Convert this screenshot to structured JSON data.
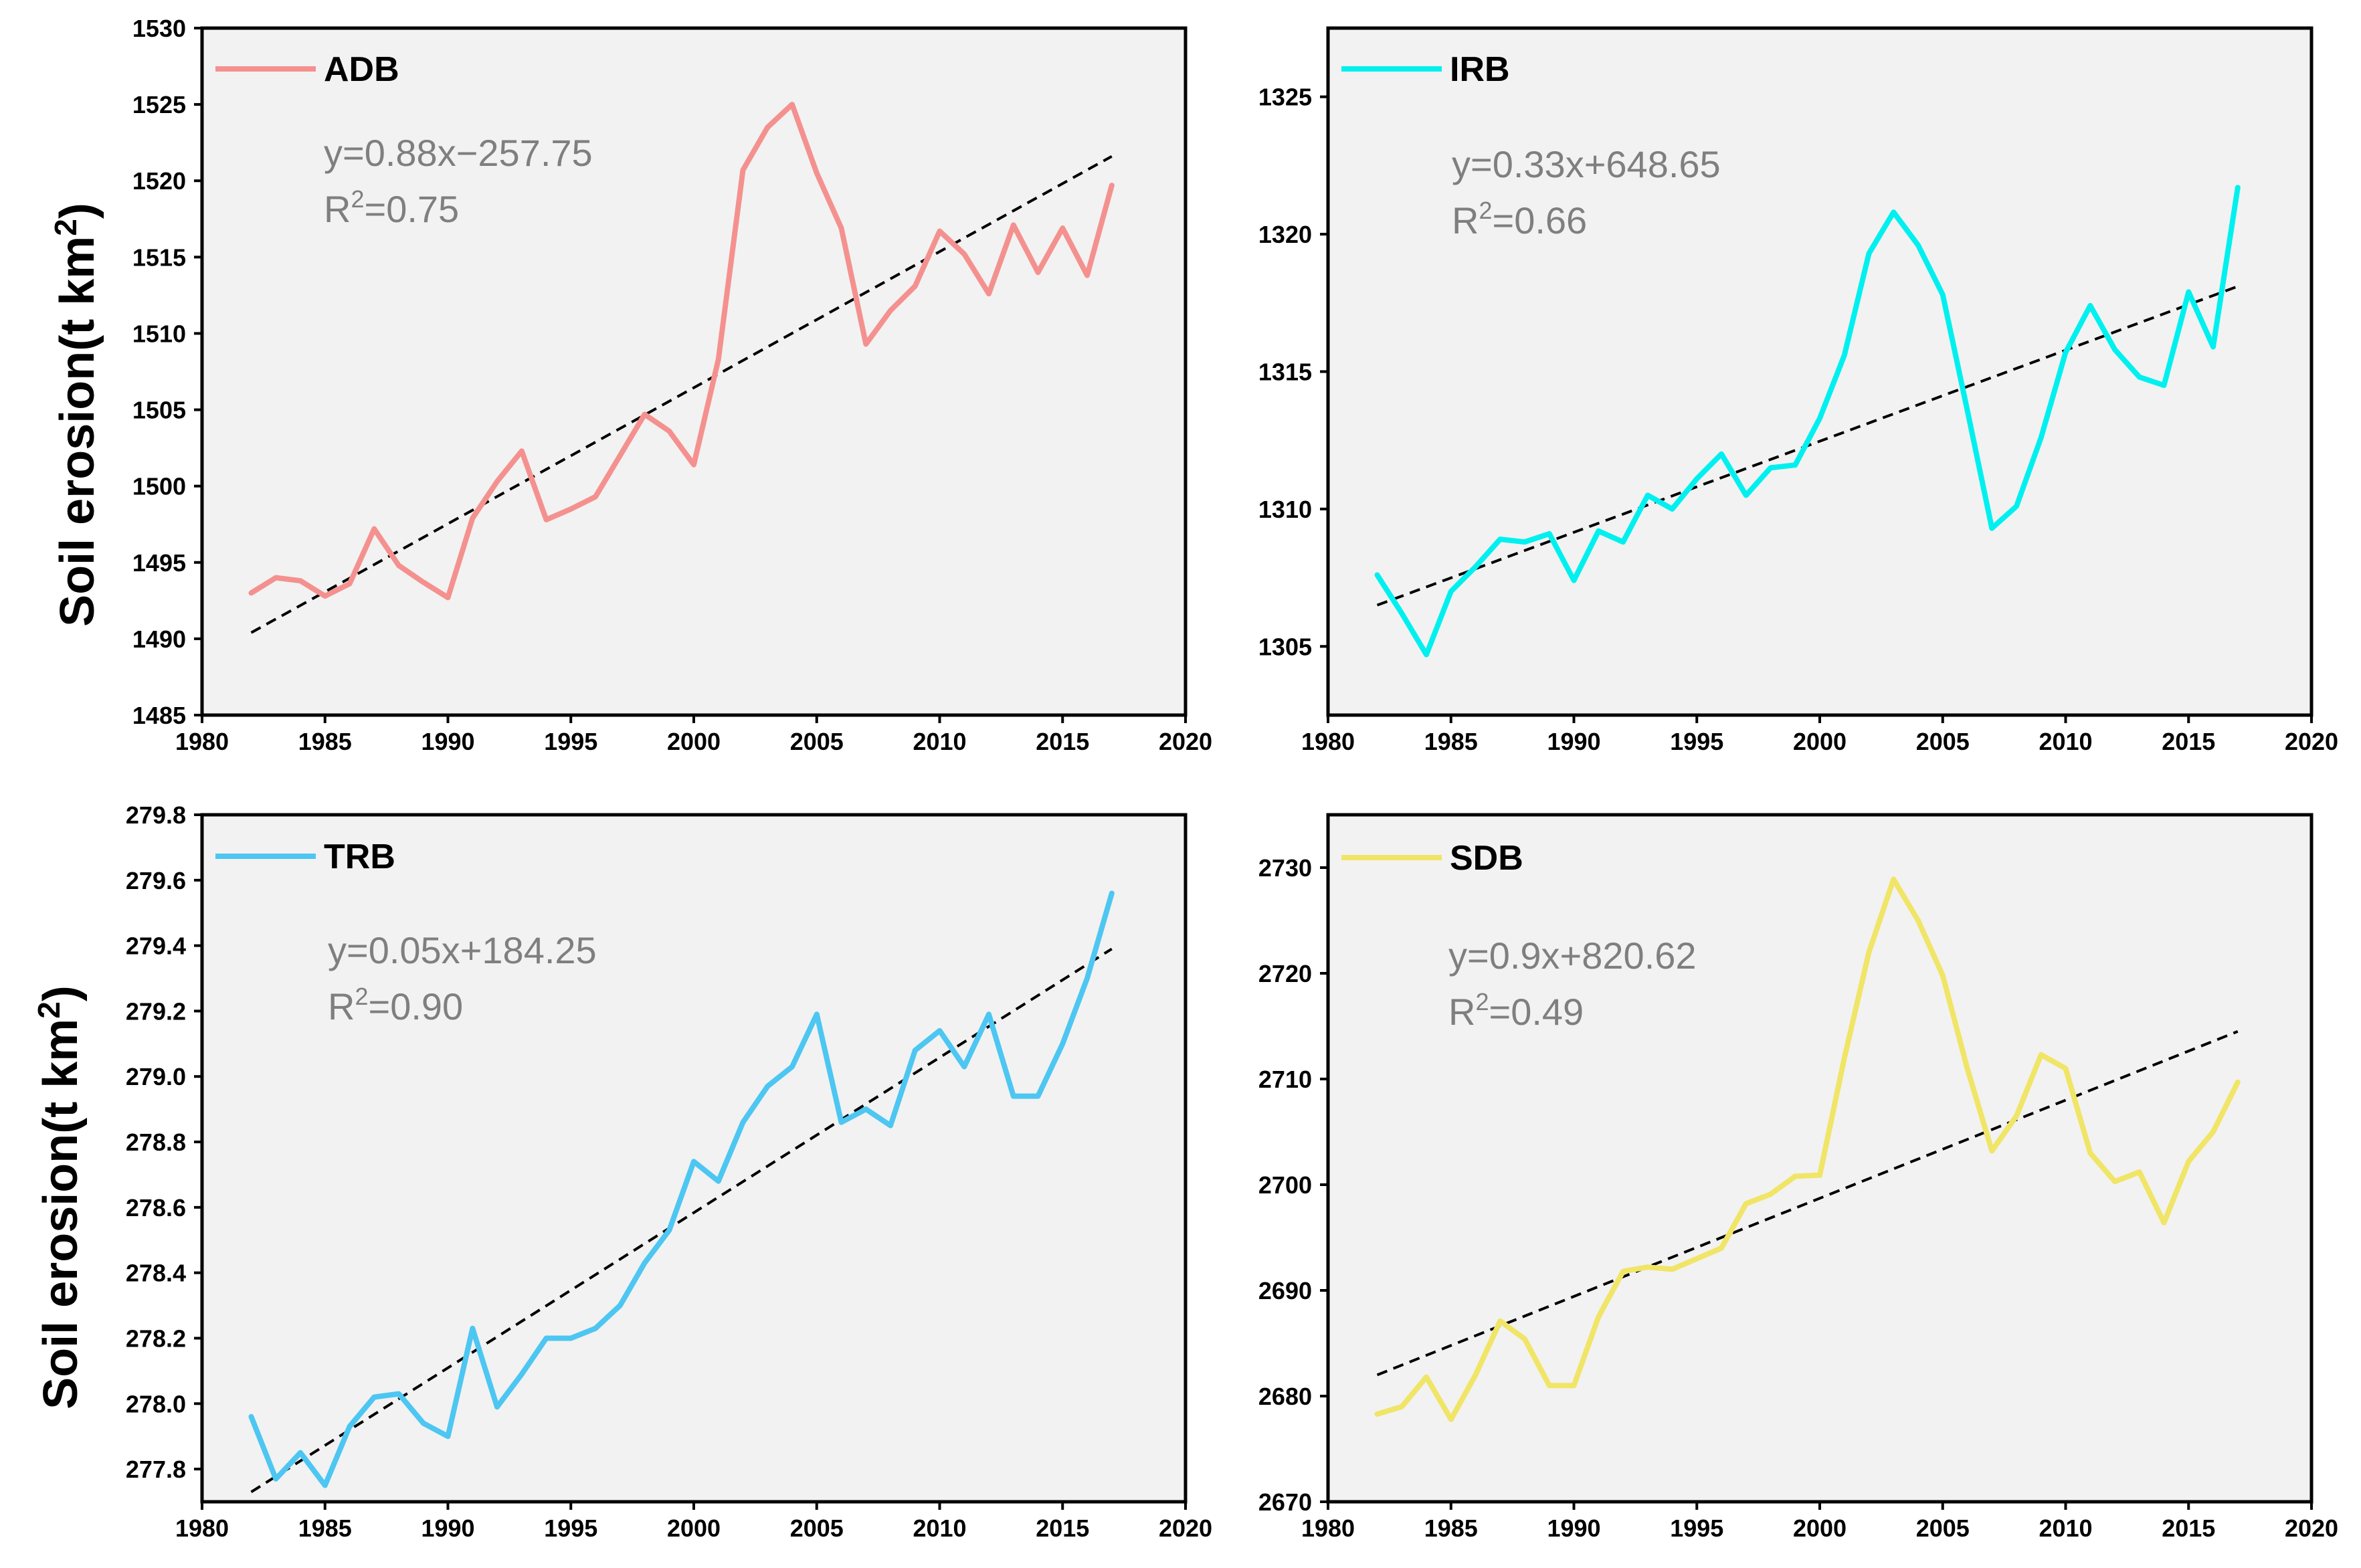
{
  "figure": {
    "ylabel_prefix": "Soil erosion(t km",
    "ylabel_sup": "2",
    "ylabel_suffix": ")"
  },
  "chart_data": [
    {
      "type": "line",
      "id": "adb",
      "legend": "ADB",
      "color": "#f4918f",
      "trend_color": "#000000",
      "equation": "y=0.88x−257.75",
      "r2_prefix": "R",
      "r2_sup": "2",
      "r2_value": "=0.75",
      "xlim": [
        1980,
        2020
      ],
      "ylim": [
        1485,
        1530
      ],
      "xticks": [
        1980,
        1985,
        1990,
        1995,
        2000,
        2005,
        2010,
        2015,
        2020
      ],
      "yticks": [
        1485,
        1490,
        1495,
        1500,
        1505,
        1510,
        1515,
        1520,
        1525,
        1530
      ],
      "ytick_decimals": 0,
      "x": [
        1982,
        1983,
        1984,
        1985,
        1986,
        1987,
        1988,
        1989,
        1990,
        1991,
        1992,
        1993,
        1994,
        1995,
        1996,
        1997,
        1998,
        1999,
        2000,
        2001,
        2002,
        2003,
        2004,
        2005,
        2006,
        2007,
        2008,
        2009,
        2010,
        2011,
        2012,
        2013,
        2014,
        2015,
        2016,
        2017
      ],
      "values": [
        1493.0,
        1494.0,
        1493.8,
        1492.8,
        1493.6,
        1497.2,
        1494.8,
        1493.7,
        1492.7,
        1497.9,
        1500.3,
        1502.3,
        1497.8,
        1498.5,
        1499.3,
        1502.0,
        1504.7,
        1503.6,
        1501.4,
        1508.3,
        1520.7,
        1523.5,
        1525.0,
        1520.5,
        1516.9,
        1509.3,
        1511.5,
        1513.1,
        1516.7,
        1515.2,
        1512.6,
        1517.1,
        1514.0,
        1516.9,
        1513.8,
        1519.7
      ],
      "trend": {
        "x": [
          1982,
          2017
        ],
        "y": [
          1490.4,
          1521.6
        ]
      }
    },
    {
      "type": "line",
      "id": "irb",
      "legend": "IRB",
      "color": "#00f0f0",
      "trend_color": "#000000",
      "equation": "y=0.33x+648.65",
      "r2_prefix": "R",
      "r2_sup": "2",
      "r2_value": "=0.66",
      "xlim": [
        1980,
        2020
      ],
      "ylim": [
        1302.5,
        1327.5
      ],
      "xticks": [
        1980,
        1985,
        1990,
        1995,
        2000,
        2005,
        2010,
        2015,
        2020
      ],
      "yticks": [
        1305,
        1310,
        1315,
        1320,
        1325
      ],
      "ytick_decimals": 0,
      "x": [
        1982,
        1983,
        1984,
        1985,
        1986,
        1987,
        1988,
        1989,
        1990,
        1991,
        1992,
        1993,
        1994,
        1995,
        1996,
        1997,
        1998,
        1999,
        2000,
        2001,
        2002,
        2003,
        2004,
        2005,
        2006,
        2007,
        2008,
        2009,
        2010,
        2011,
        2012,
        2013,
        2014,
        2015,
        2016,
        2017
      ],
      "values": [
        1307.6,
        1306.2,
        1304.7,
        1307.0,
        1307.9,
        1308.9,
        1308.8,
        1309.1,
        1307.4,
        1309.2,
        1308.8,
        1310.5,
        1310.0,
        1311.1,
        1312.0,
        1310.5,
        1311.5,
        1311.6,
        1313.3,
        1315.6,
        1319.3,
        1320.8,
        1319.6,
        1317.8,
        1313.6,
        1309.3,
        1310.1,
        1312.6,
        1315.7,
        1317.4,
        1315.8,
        1314.8,
        1314.5,
        1317.9,
        1315.9,
        1321.7
      ],
      "trend": {
        "x": [
          1982,
          2017
        ],
        "y": [
          1306.5,
          1318.1
        ]
      }
    },
    {
      "type": "line",
      "id": "trb",
      "legend": "TRB",
      "color": "#4dc6f2",
      "trend_color": "#000000",
      "equation": "y=0.05x+184.25",
      "r2_prefix": "R",
      "r2_sup": "2",
      "r2_value": "=0.90",
      "xlim": [
        1980,
        2020
      ],
      "ylim": [
        277.7,
        279.8
      ],
      "xticks": [
        1980,
        1985,
        1990,
        1995,
        2000,
        2005,
        2010,
        2015,
        2020
      ],
      "yticks": [
        277.8,
        278.0,
        278.2,
        278.4,
        278.6,
        278.8,
        279.0,
        279.2,
        279.4,
        279.6,
        279.8
      ],
      "ytick_decimals": 1,
      "x": [
        1982,
        1983,
        1984,
        1985,
        1986,
        1987,
        1988,
        1989,
        1990,
        1991,
        1992,
        1993,
        1994,
        1995,
        1996,
        1997,
        1998,
        1999,
        2000,
        2001,
        2002,
        2003,
        2004,
        2005,
        2006,
        2007,
        2008,
        2009,
        2010,
        2011,
        2012,
        2013,
        2014,
        2015,
        2016,
        2017
      ],
      "values": [
        277.96,
        277.77,
        277.85,
        277.75,
        277.93,
        278.02,
        278.03,
        277.94,
        277.9,
        278.23,
        277.99,
        278.09,
        278.2,
        278.2,
        278.23,
        278.3,
        278.43,
        278.53,
        278.74,
        278.68,
        278.86,
        278.97,
        279.03,
        279.19,
        278.86,
        278.9,
        278.85,
        279.08,
        279.14,
        279.03,
        279.19,
        278.94,
        278.94,
        279.1,
        279.3,
        279.56
      ],
      "trend": {
        "x": [
          1982,
          2017
        ],
        "y": [
          277.73,
          279.39
        ]
      }
    },
    {
      "type": "line",
      "id": "sdb",
      "legend": "SDB",
      "color": "#f0e566",
      "trend_color": "#000000",
      "equation": "y=0.9x+820.62",
      "r2_prefix": "R",
      "r2_sup": "2",
      "r2_value": "=0.49",
      "xlim": [
        1980,
        2020
      ],
      "ylim": [
        2670,
        2735
      ],
      "xticks": [
        1980,
        1985,
        1990,
        1995,
        2000,
        2005,
        2010,
        2015,
        2020
      ],
      "yticks": [
        2670,
        2680,
        2690,
        2700,
        2710,
        2720,
        2730
      ],
      "ytick_decimals": 0,
      "x": [
        1982,
        1983,
        1984,
        1985,
        1986,
        1987,
        1988,
        1989,
        1990,
        1991,
        1992,
        1993,
        1994,
        1995,
        1996,
        1997,
        1998,
        1999,
        2000,
        2001,
        2002,
        2003,
        2004,
        2005,
        2006,
        2007,
        2008,
        2009,
        2010,
        2011,
        2012,
        2013,
        2014,
        2015,
        2016,
        2017
      ],
      "values": [
        2678.3,
        2679.0,
        2681.8,
        2677.8,
        2682.0,
        2687.1,
        2685.4,
        2681.0,
        2681.0,
        2687.5,
        2691.8,
        2692.2,
        2692.0,
        2693.0,
        2694.0,
        2698.2,
        2699.1,
        2700.8,
        2700.9,
        2712.0,
        2722.0,
        2728.9,
        2725.0,
        2719.8,
        2711.0,
        2703.2,
        2706.5,
        2712.3,
        2711.0,
        2703.0,
        2700.3,
        2701.2,
        2696.4,
        2702.2,
        2705.0,
        2709.7
      ],
      "trend": {
        "x": [
          1982,
          2017
        ],
        "y": [
          2682.0,
          2714.5
        ]
      }
    }
  ]
}
